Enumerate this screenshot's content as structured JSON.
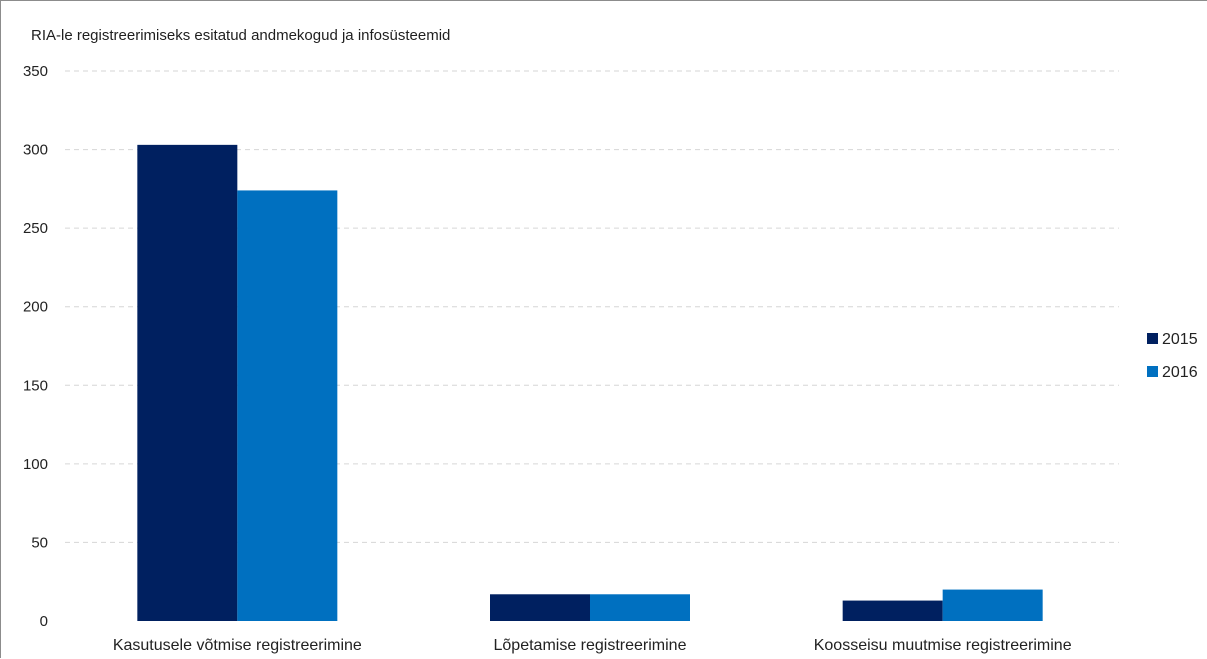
{
  "chart_data": {
    "type": "bar",
    "title": "RIA-le registreerimiseks esitatud andmekogud ja infosüsteemid",
    "xlabel": "",
    "ylabel": "",
    "categories": [
      "Kasutusele võtmise registreerimine",
      "Lõpetamise registreerimine",
      "Koosseisu muutmise registreerimine"
    ],
    "series": [
      {
        "name": "2015",
        "color": "#002060",
        "values": [
          303,
          17,
          13
        ]
      },
      {
        "name": "2016",
        "color": "#0070c0",
        "values": [
          274,
          17,
          20
        ]
      }
    ],
    "ylim": [
      0,
      350
    ],
    "yticks": [
      0,
      50,
      100,
      150,
      200,
      250,
      300,
      350
    ],
    "grid": true,
    "legend_position": "right"
  }
}
